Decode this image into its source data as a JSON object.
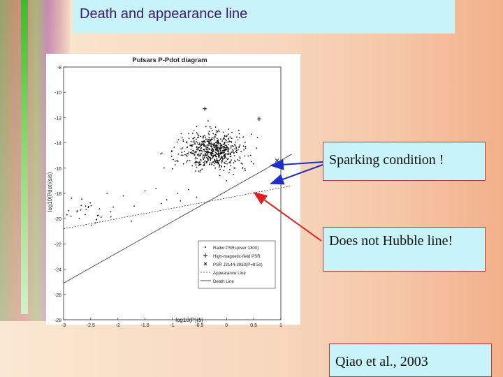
{
  "slide": {
    "title": "Death and appearance line",
    "annotations": {
      "sparking": "Sparking condition !",
      "hubble": "Does not Hubble line!",
      "reference": "Qiao et al., 2003"
    }
  },
  "chart_data": {
    "type": "scatter",
    "title": "Pulsars P-Pdot diagram",
    "xlabel": "log10(P)(s)",
    "ylabel": "log10(Pdot)(s/s)",
    "xlim": [
      -3,
      1
    ],
    "ylim": [
      -28,
      -8
    ],
    "xticks": [
      "-3",
      "-2.5",
      "-2",
      "-1.5",
      "-1",
      "-0.5",
      "0",
      "0.5",
      "1"
    ],
    "yticks": [
      "-8",
      "-10",
      "-12",
      "-14",
      "-16",
      "-18",
      "-20",
      "-22",
      "-24",
      "-26",
      "-28"
    ],
    "legend": {
      "placement": "bottom-right",
      "entries": [
        "Radio PSRs(over 1300)",
        "High-magnetic-field PSR",
        "PSR J2144-3933(P=8.5s)",
        "Appearance Line",
        "Death Line"
      ]
    },
    "series": [
      {
        "name": "Radio PSRs(over 1300)",
        "marker": "dot",
        "clusters": [
          {
            "x_mean": -0.25,
            "x_sd": 0.28,
            "y_mean": -14.6,
            "y_sd": 0.75,
            "count": 640
          },
          {
            "x_mean": -2.55,
            "x_sd": 0.3,
            "y_mean": -19.6,
            "y_sd": 0.6,
            "count": 30
          }
        ],
        "points": [
          {
            "x": -1.5,
            "y": -17.8
          },
          {
            "x": -1.3,
            "y": -17.6
          },
          {
            "x": -1.1,
            "y": -18.5
          },
          {
            "x": -0.9,
            "y": -18.0
          },
          {
            "x": -1.7,
            "y": -19.0
          },
          {
            "x": -1.9,
            "y": -18.2
          },
          {
            "x": -2.2,
            "y": -18.0
          },
          {
            "x": -1.75,
            "y": -20.2
          },
          {
            "x": -1.2,
            "y": -18.8
          },
          {
            "x": -0.7,
            "y": -17.7
          },
          {
            "x": -0.85,
            "y": -18.6
          },
          {
            "x": -0.55,
            "y": -18.3
          }
        ]
      },
      {
        "name": "High-magnetic-field PSR",
        "marker": "plus",
        "points": [
          {
            "x": -0.4,
            "y": -11.3
          },
          {
            "x": 0.6,
            "y": -12.1
          }
        ]
      },
      {
        "name": "PSR J2144-3933(P=8.5s)",
        "marker": "x",
        "points": [
          {
            "x": 0.93,
            "y": -15.4
          }
        ]
      }
    ],
    "lines": [
      {
        "name": "Appearance Line",
        "x": [
          -3,
          1.2
        ],
        "y": [
          -20.8,
          -17.4
        ]
      },
      {
        "name": "Death Line",
        "x": [
          -3,
          1.2
        ],
        "y": [
          -25.1,
          -14.9
        ]
      }
    ]
  }
}
